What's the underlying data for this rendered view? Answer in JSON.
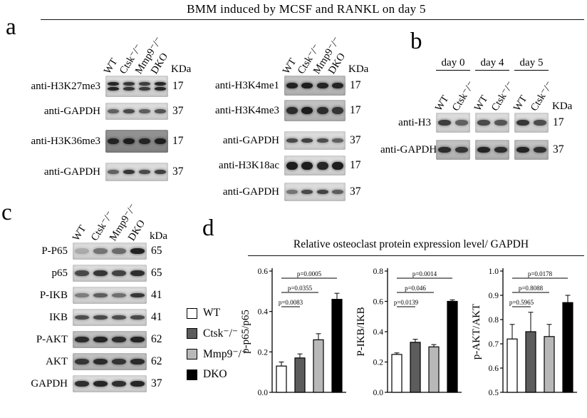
{
  "title": "BMM induced by MCSF  and RANKL  on day 5",
  "panels": {
    "a": {
      "letter": "a",
      "left_group": {
        "lanes": [
          "WT",
          "Ctsk⁻/⁻",
          "Mmp9⁻/⁻",
          "DKO"
        ],
        "kda_header": "KDa",
        "rows": [
          {
            "label": "anti-H3K27me3",
            "kda": "17",
            "shade": "light",
            "double": true,
            "bands": [
              0.9,
              0.82,
              0.78,
              0.9
            ]
          },
          {
            "label": "anti-GAPDH",
            "kda": "37",
            "shade": "light",
            "bh": 6,
            "bands": [
              0.6,
              0.72,
              0.62,
              0.68
            ]
          },
          {
            "label": "anti-H3K36me3",
            "kda": "17",
            "shade": "dark",
            "bands": [
              0.88,
              0.92,
              0.86,
              0.92
            ]
          },
          {
            "label": "anti-GAPDH",
            "kda": "37",
            "shade": "light",
            "bh": 6,
            "bands": [
              0.6,
              0.82,
              0.72,
              0.78
            ]
          }
        ]
      },
      "right_group": {
        "lanes": [
          "WT",
          "Ctsk⁻/⁻",
          "Mmp9⁻/⁻",
          "DKO"
        ],
        "kda_header": "KDa",
        "rows": [
          {
            "label": "anti-H3K4me1",
            "kda": "17",
            "shade": "mid",
            "bands": [
              0.92,
              0.95,
              0.9,
              0.9
            ]
          },
          {
            "label": "anti-H3K4me3",
            "kda": "17",
            "shade": "mid",
            "bh": 10,
            "bands": [
              0.85,
              0.95,
              0.85,
              0.8
            ]
          },
          {
            "label": "anti-GAPDH",
            "kda": "37",
            "shade": "light",
            "bh": 6,
            "bands": [
              0.72,
              0.76,
              0.7,
              0.6
            ]
          },
          {
            "label": "anti-H3K18ac",
            "kda": "17",
            "shade": "light",
            "bh": 11,
            "bands": [
              0.95,
              0.95,
              0.9,
              0.95
            ]
          },
          {
            "label": "anti-GAPDH",
            "kda": "37",
            "shade": "light",
            "bh": 6,
            "bands": [
              0.5,
              0.72,
              0.76,
              0.62
            ]
          }
        ]
      }
    },
    "b": {
      "letter": "b",
      "days": [
        "day 0",
        "day 4",
        "day 5"
      ],
      "lanes": [
        "WT",
        "Ctsk⁻/⁻"
      ],
      "kda_header": "KDa",
      "rows": [
        {
          "label": "anti-H3",
          "kda": "17",
          "shade": "light",
          "bands": [
            0.78,
            0.6,
            0.72,
            0.66,
            0.82,
            0.7
          ]
        },
        {
          "label": "anti-GAPDH",
          "kda": "37",
          "shade": "mid",
          "bands": [
            0.86,
            0.8,
            0.9,
            0.85,
            0.9,
            0.84
          ]
        }
      ]
    },
    "c": {
      "letter": "c",
      "lanes": [
        "WT",
        "Ctsk⁻/⁻",
        "Mmp9⁻/⁻",
        "DKO"
      ],
      "kda_header": "kDa",
      "rows": [
        {
          "label": "P-P65",
          "kda": "65",
          "shade": "light",
          "bands": [
            0.22,
            0.5,
            0.55,
            0.92
          ]
        },
        {
          "label": "p65",
          "kda": "65",
          "shade": "light",
          "bands": [
            0.72,
            0.82,
            0.76,
            0.86
          ]
        },
        {
          "label": "P-IKB",
          "kda": "41",
          "shade": "light",
          "bh": 6,
          "bands": [
            0.45,
            0.62,
            0.52,
            0.82
          ]
        },
        {
          "label": "IKB",
          "kda": "41",
          "shade": "light",
          "bh": 6,
          "bands": [
            0.7,
            0.72,
            0.7,
            0.72
          ]
        },
        {
          "label": "P-AKT",
          "kda": "62",
          "shade": "mid",
          "bands": [
            0.86,
            0.9,
            0.85,
            0.9
          ]
        },
        {
          "label": "AKT",
          "kda": "62",
          "shade": "mid",
          "bands": [
            0.8,
            0.86,
            0.8,
            0.86
          ]
        },
        {
          "label": "GAPDH",
          "kda": "37",
          "shade": "light",
          "bands": [
            0.86,
            0.9,
            0.86,
            0.9
          ]
        }
      ]
    },
    "d": {
      "letter": "d",
      "title": "Relative osteoclast protein  expression level/ GAPDH",
      "legend": {
        "items": [
          {
            "label": "WT",
            "color": "#ffffff"
          },
          {
            "label": "Ctsk⁻/⁻",
            "color": "#5c5c5c"
          },
          {
            "label": "Mmp9⁻/⁻",
            "color": "#b8b8b8"
          },
          {
            "label": "DKO",
            "color": "#000000"
          }
        ]
      }
    }
  },
  "chart_data": [
    {
      "type": "bar",
      "ylabel": "p-p65/p65",
      "categories": [
        "WT",
        "Ctsk⁻/⁻",
        "Mmp9⁻/⁻",
        "DKO"
      ],
      "values": [
        0.13,
        0.17,
        0.26,
        0.46
      ],
      "errors": [
        0.02,
        0.02,
        0.03,
        0.03
      ],
      "ylim": [
        0.0,
        0.6
      ],
      "yticks": [
        "0.0",
        "0.2",
        "0.4",
        "0.6"
      ],
      "significance": [
        {
          "from": 0,
          "to": 1,
          "label": "p=0.0083",
          "level": 0
        },
        {
          "from": 0,
          "to": 2,
          "label": "p=0.0355",
          "level": 1
        },
        {
          "from": 0,
          "to": 3,
          "label": "p=0.0005",
          "level": 2
        }
      ]
    },
    {
      "type": "bar",
      "ylabel": "P-IKB/IKB",
      "categories": [
        "WT",
        "Ctsk⁻/⁻",
        "Mmp9⁻/⁻",
        "DKO"
      ],
      "values": [
        0.25,
        0.33,
        0.3,
        0.6
      ],
      "errors": [
        0.01,
        0.02,
        0.015,
        0.01
      ],
      "ylim": [
        0.0,
        0.8
      ],
      "yticks": [
        "0.0",
        "0.2",
        "0.4",
        "0.6",
        "0.8"
      ],
      "significance": [
        {
          "from": 0,
          "to": 1,
          "label": "p=0.0139",
          "level": 0
        },
        {
          "from": 0,
          "to": 2,
          "label": "p=0.046",
          "level": 1
        },
        {
          "from": 0,
          "to": 3,
          "label": "p=0.0014",
          "level": 2
        }
      ]
    },
    {
      "type": "bar",
      "ylabel": "p-AKT/AKT",
      "categories": [
        "WT",
        "Ctsk⁻/⁻",
        "Mmp9⁻/⁻",
        "DKO"
      ],
      "values": [
        0.72,
        0.75,
        0.73,
        0.87
      ],
      "errors": [
        0.06,
        0.08,
        0.05,
        0.03
      ],
      "ylim": [
        0.5,
        1.0
      ],
      "yticks": [
        "0.5",
        "0.6",
        "0.7",
        "0.8",
        "0.9",
        "1.0"
      ],
      "significance": [
        {
          "from": 0,
          "to": 1,
          "label": "p=0.5965",
          "level": 0
        },
        {
          "from": 0,
          "to": 2,
          "label": "p=0.8088",
          "level": 1
        },
        {
          "from": 0,
          "to": 3,
          "label": "p=0.0178",
          "level": 2
        }
      ]
    }
  ]
}
